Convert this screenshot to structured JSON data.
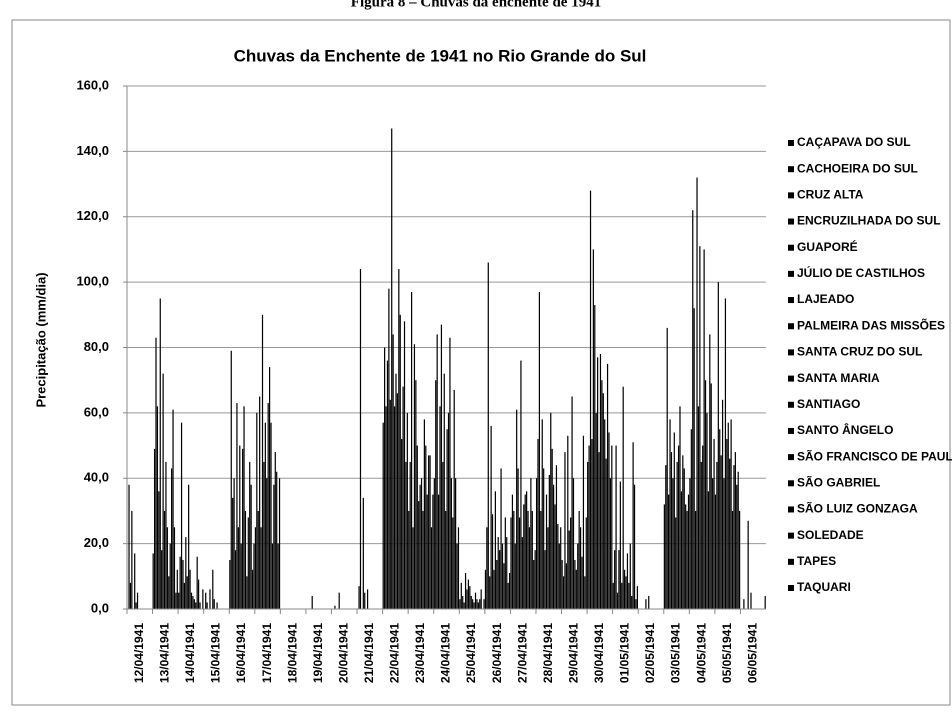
{
  "caption": "Figura 8 – Chuvas da enchente de 1941",
  "chart_data": {
    "type": "bar",
    "title": "Chuvas da Enchente de 1941 no Rio Grande do Sul",
    "y_label": "Precipitação (mm/dia)",
    "categories": [
      "12/04/1941",
      "13/04/1941",
      "14/04/1941",
      "15/04/1941",
      "16/04/1941",
      "17/04/1941",
      "18/04/1941",
      "19/04/1941",
      "20/04/1941",
      "21/04/1941",
      "22/04/1941",
      "23/04/1941",
      "24/04/1941",
      "25/04/1941",
      "26/04/1941",
      "27/04/1941",
      "28/04/1941",
      "29/04/1941",
      "30/04/1941",
      "01/05/1941",
      "02/05/1941",
      "03/05/1941",
      "04/05/1941",
      "05/05/1941",
      "06/05/1941"
    ],
    "ylim": [
      0,
      160
    ],
    "yticks": [
      {
        "value": 0,
        "label": "0,0"
      },
      {
        "value": 20,
        "label": "20,0"
      },
      {
        "value": 40,
        "label": "40,0"
      },
      {
        "value": 60,
        "label": "60,0"
      },
      {
        "value": 80,
        "label": "80,0"
      },
      {
        "value": 100,
        "label": "100,0"
      },
      {
        "value": 120,
        "label": "120,0"
      },
      {
        "value": 140,
        "label": "140,0"
      },
      {
        "value": 160,
        "label": "160,0"
      }
    ],
    "grid": true,
    "legend": "right",
    "series": [
      {
        "name": "CAÇAPAVA DO SUL",
        "color": "#000000",
        "values": [
          0,
          17,
          5,
          0,
          15,
          25,
          0,
          0,
          0,
          0,
          57,
          30,
          40,
          3,
          12,
          28,
          40,
          15,
          45,
          8,
          0,
          32,
          40,
          35,
          0
        ]
      },
      {
        "name": "CACHOEIRA DO SUL",
        "color": "#000000",
        "values": [
          38,
          49,
          16,
          5,
          79,
          60,
          0,
          0,
          0,
          7,
          80,
          45,
          70,
          8,
          25,
          35,
          52,
          10,
          50,
          18,
          0,
          44,
          55,
          45,
          0
        ]
      },
      {
        "name": "CRUZ ALTA",
        "color": "#000000",
        "values": [
          8,
          83,
          57,
          2,
          34,
          30,
          0,
          0,
          1,
          104,
          62,
          97,
          84,
          4,
          106,
          30,
          97,
          48,
          128,
          50,
          0,
          86,
          122,
          100,
          3
        ]
      },
      {
        "name": "ENCRUZILHADA DO SUL",
        "color": "#000000",
        "values": [
          30,
          62,
          15,
          0,
          40,
          65,
          0,
          0,
          0,
          0,
          76,
          25,
          35,
          2,
          10,
          20,
          30,
          14,
          52,
          5,
          0,
          35,
          92,
          55,
          0
        ]
      },
      {
        "name": "GUAPORÉ",
        "color": "#000000",
        "values": [
          0,
          36,
          8,
          6,
          18,
          25,
          0,
          4,
          0,
          34,
          98,
          81,
          62,
          11,
          56,
          61,
          58,
          53,
          110,
          18,
          0,
          58,
          30,
          47,
          0
        ]
      },
      {
        "name": "JÚLIO DE CASTILHOS",
        "color": "#000000",
        "values": [
          17,
          95,
          22,
          0,
          63,
          90,
          0,
          0,
          5,
          5,
          64,
          70,
          87,
          6,
          29,
          43,
          43,
          24,
          93,
          39,
          3,
          48,
          132,
          64,
          27
        ]
      },
      {
        "name": "LAJEADO",
        "color": "#000000",
        "values": [
          2,
          18,
          10,
          12,
          25,
          45,
          0,
          0,
          0,
          0,
          147,
          50,
          45,
          9,
          12,
          28,
          18,
          28,
          60,
          8,
          0,
          40,
          62,
          40,
          0
        ]
      },
      {
        "name": "PALMEIRA DAS MISSÕES",
        "color": "#000000",
        "values": [
          5,
          72,
          38,
          3,
          50,
          57,
          0,
          0,
          0,
          6,
          84,
          33,
          72,
          7,
          36,
          76,
          35,
          65,
          77,
          68,
          4,
          54,
          111,
          95,
          5
        ]
      },
      {
        "name": "SANTA CRUZ DO SUL",
        "color": "#000000",
        "values": [
          0,
          30,
          12,
          0,
          20,
          40,
          0,
          0,
          0,
          0,
          62,
          38,
          30,
          4,
          15,
          22,
          25,
          40,
          48,
          12,
          0,
          28,
          45,
          52,
          0
        ]
      },
      {
        "name": "SANTA MARIA",
        "color": "#000000",
        "values": [
          0,
          45,
          5,
          2,
          49,
          63,
          0,
          0,
          0,
          0,
          72,
          40,
          55,
          3,
          22,
          32,
          41,
          15,
          78,
          10,
          0,
          45,
          50,
          57,
          0
        ]
      },
      {
        "name": "SANTIAGO",
        "color": "#000000",
        "values": [
          0,
          25,
          4,
          0,
          62,
          74,
          0,
          0,
          0,
          0,
          66,
          30,
          60,
          2,
          18,
          35,
          60,
          12,
          70,
          17,
          0,
          50,
          110,
          46,
          0
        ]
      },
      {
        "name": "SANTO ÂNGELO",
        "color": "#000000",
        "values": [
          0,
          10,
          3,
          0,
          30,
          57,
          0,
          0,
          0,
          0,
          104,
          58,
          83,
          5,
          43,
          36,
          49,
          20,
          66,
          8,
          0,
          62,
          70,
          58,
          0
        ]
      },
      {
        "name": "SÃO FRANCISCO DE PAULA",
        "color": "#000000",
        "values": [
          0,
          20,
          2,
          0,
          10,
          20,
          0,
          0,
          0,
          0,
          90,
          50,
          40,
          3,
          20,
          30,
          38,
          30,
          58,
          20,
          0,
          36,
          60,
          30,
          0
        ]
      },
      {
        "name": "SÃO GABRIEL",
        "color": "#000000",
        "values": [
          0,
          43,
          16,
          0,
          28,
          38,
          0,
          0,
          0,
          0,
          52,
          35,
          28,
          2,
          14,
          25,
          32,
          25,
          46,
          4,
          0,
          47,
          36,
          44,
          0
        ]
      },
      {
        "name": "SÃO LUIZ GONZAGA",
        "color": "#000000",
        "values": [
          0,
          61,
          9,
          0,
          45,
          48,
          0,
          0,
          0,
          0,
          68,
          47,
          67,
          3,
          28,
          40,
          44,
          16,
          75,
          51,
          0,
          43,
          84,
          48,
          0
        ]
      },
      {
        "name": "SOLEDADE",
        "color": "#000000",
        "values": [
          0,
          25,
          2,
          0,
          38,
          42,
          0,
          0,
          0,
          0,
          88,
          47,
          40,
          6,
          22,
          30,
          26,
          53,
          54,
          38,
          0,
          32,
          69,
          38,
          0
        ]
      },
      {
        "name": "TAPES",
        "color": "#000000",
        "values": [
          0,
          5,
          0,
          0,
          12,
          20,
          0,
          0,
          0,
          0,
          45,
          25,
          20,
          0,
          8,
          15,
          20,
          10,
          40,
          3,
          0,
          30,
          40,
          42,
          0
        ]
      },
      {
        "name": "TAQUARI",
        "color": "#000000",
        "values": [
          0,
          12,
          6,
          0,
          20,
          40,
          0,
          0,
          0,
          0,
          60,
          35,
          25,
          3,
          11,
          18,
          25,
          28,
          50,
          7,
          0,
          35,
          52,
          30,
          4
        ]
      }
    ]
  }
}
